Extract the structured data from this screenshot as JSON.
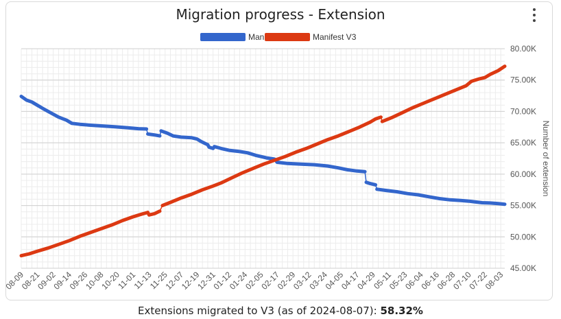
{
  "header": {
    "title": "Migration progress - Extension",
    "menu_icon": "more-vert-icon"
  },
  "footer": {
    "text": "Extensions migrated to V3 (as of 2024-08-07):",
    "value": "58.32%"
  },
  "colors": {
    "v2": "#3366cc",
    "v3": "#dc3912",
    "grid": "#e3e3e3",
    "axis_text": "#555555"
  },
  "chart_data": {
    "type": "line",
    "title": "Migration progress - Extension",
    "xlabel": "",
    "ylabel": "Number of extension",
    "y_axis_side": "right",
    "ylim": [
      45000,
      80000
    ],
    "y_ticks": [
      45000,
      50000,
      55000,
      60000,
      65000,
      70000,
      75000,
      80000
    ],
    "y_tick_labels": [
      "45.00K",
      "50.00K",
      "55.00K",
      "60.00K",
      "65.00K",
      "70.00K",
      "75.00K",
      "80.00K"
    ],
    "x_start_day": 0,
    "x_end_day": 363,
    "x_ticks": [
      {
        "label": "08-09",
        "day": 0
      },
      {
        "label": "08-21",
        "day": 12
      },
      {
        "label": "09-02",
        "day": 24
      },
      {
        "label": "09-14",
        "day": 36
      },
      {
        "label": "09-26",
        "day": 48
      },
      {
        "label": "10-08",
        "day": 60
      },
      {
        "label": "10-20",
        "day": 72
      },
      {
        "label": "11-01",
        "day": 84
      },
      {
        "label": "11-13",
        "day": 96
      },
      {
        "label": "11-25",
        "day": 108
      },
      {
        "label": "12-07",
        "day": 120
      },
      {
        "label": "12-19",
        "day": 132
      },
      {
        "label": "12-31",
        "day": 144
      },
      {
        "label": "01-12",
        "day": 156
      },
      {
        "label": "01-24",
        "day": 168
      },
      {
        "label": "02-05",
        "day": 180
      },
      {
        "label": "02-17",
        "day": 192
      },
      {
        "label": "02-29",
        "day": 204
      },
      {
        "label": "03-12",
        "day": 216
      },
      {
        "label": "03-24",
        "day": 228
      },
      {
        "label": "04-05",
        "day": 240
      },
      {
        "label": "04-17",
        "day": 252
      },
      {
        "label": "04-29",
        "day": 264
      },
      {
        "label": "05-11",
        "day": 276
      },
      {
        "label": "05-23",
        "day": 288
      },
      {
        "label": "06-04",
        "day": 300
      },
      {
        "label": "06-16",
        "day": 312
      },
      {
        "label": "06-28",
        "day": 324
      },
      {
        "label": "07-10",
        "day": 336
      },
      {
        "label": "07-22",
        "day": 348
      },
      {
        "label": "08-03",
        "day": 360
      }
    ],
    "series": [
      {
        "name": "Manifest V2",
        "color": "#3366cc",
        "points": [
          [
            0,
            72400
          ],
          [
            4,
            71800
          ],
          [
            8,
            71500
          ],
          [
            12,
            71000
          ],
          [
            16,
            70500
          ],
          [
            22,
            69800
          ],
          [
            28,
            69100
          ],
          [
            34,
            68600
          ],
          [
            38,
            68100
          ],
          [
            44,
            67950
          ],
          [
            52,
            67800
          ],
          [
            60,
            67700
          ],
          [
            70,
            67550
          ],
          [
            80,
            67400
          ],
          [
            88,
            67250
          ],
          [
            94,
            67200
          ],
          [
            95,
            66400
          ],
          [
            100,
            66250
          ],
          [
            104,
            66100
          ],
          [
            105,
            66900
          ],
          [
            110,
            66500
          ],
          [
            114,
            66100
          ],
          [
            120,
            65900
          ],
          [
            128,
            65800
          ],
          [
            132,
            65600
          ],
          [
            135,
            65200
          ],
          [
            138,
            64900
          ],
          [
            140,
            64700
          ],
          [
            141,
            64300
          ],
          [
            144,
            64100
          ],
          [
            145,
            64400
          ],
          [
            150,
            64100
          ],
          [
            156,
            63800
          ],
          [
            164,
            63600
          ],
          [
            170,
            63400
          ],
          [
            176,
            63000
          ],
          [
            184,
            62600
          ],
          [
            190,
            62400
          ],
          [
            191,
            62300
          ],
          [
            192,
            61900
          ],
          [
            200,
            61700
          ],
          [
            210,
            61600
          ],
          [
            220,
            61500
          ],
          [
            230,
            61300
          ],
          [
            238,
            61000
          ],
          [
            245,
            60700
          ],
          [
            252,
            60500
          ],
          [
            258,
            60400
          ],
          [
            259,
            58700
          ],
          [
            262,
            58500
          ],
          [
            266,
            58300
          ],
          [
            267,
            57600
          ],
          [
            274,
            57400
          ],
          [
            282,
            57200
          ],
          [
            290,
            56900
          ],
          [
            298,
            56700
          ],
          [
            306,
            56400
          ],
          [
            314,
            56100
          ],
          [
            322,
            55900
          ],
          [
            330,
            55800
          ],
          [
            336,
            55700
          ],
          [
            340,
            55600
          ],
          [
            346,
            55450
          ],
          [
            352,
            55400
          ],
          [
            358,
            55300
          ],
          [
            363,
            55200
          ]
        ]
      },
      {
        "name": "Manifest V3",
        "color": "#dc3912",
        "points": [
          [
            0,
            47000
          ],
          [
            6,
            47300
          ],
          [
            12,
            47700
          ],
          [
            20,
            48200
          ],
          [
            28,
            48800
          ],
          [
            36,
            49400
          ],
          [
            44,
            50100
          ],
          [
            52,
            50700
          ],
          [
            60,
            51300
          ],
          [
            68,
            51900
          ],
          [
            76,
            52600
          ],
          [
            84,
            53200
          ],
          [
            90,
            53600
          ],
          [
            95,
            53900
          ],
          [
            96,
            53500
          ],
          [
            100,
            53700
          ],
          [
            104,
            54100
          ],
          [
            106,
            55000
          ],
          [
            112,
            55500
          ],
          [
            120,
            56200
          ],
          [
            128,
            56800
          ],
          [
            136,
            57500
          ],
          [
            144,
            58100
          ],
          [
            150,
            58600
          ],
          [
            158,
            59400
          ],
          [
            166,
            60200
          ],
          [
            174,
            60900
          ],
          [
            182,
            61600
          ],
          [
            190,
            62200
          ],
          [
            198,
            62800
          ],
          [
            206,
            63500
          ],
          [
            214,
            64100
          ],
          [
            222,
            64800
          ],
          [
            230,
            65500
          ],
          [
            238,
            66100
          ],
          [
            246,
            66800
          ],
          [
            254,
            67500
          ],
          [
            262,
            68300
          ],
          [
            266,
            68800
          ],
          [
            270,
            69100
          ],
          [
            271,
            68400
          ],
          [
            278,
            69000
          ],
          [
            286,
            69800
          ],
          [
            294,
            70600
          ],
          [
            302,
            71300
          ],
          [
            310,
            72000
          ],
          [
            318,
            72700
          ],
          [
            326,
            73400
          ],
          [
            334,
            74100
          ],
          [
            338,
            74800
          ],
          [
            344,
            75200
          ],
          [
            348,
            75400
          ],
          [
            352,
            75900
          ],
          [
            358,
            76500
          ],
          [
            363,
            77200
          ]
        ]
      }
    ],
    "legend": [
      "Manifest V2",
      "Manifest V3"
    ],
    "legend_position": "top-center",
    "grid": true
  }
}
